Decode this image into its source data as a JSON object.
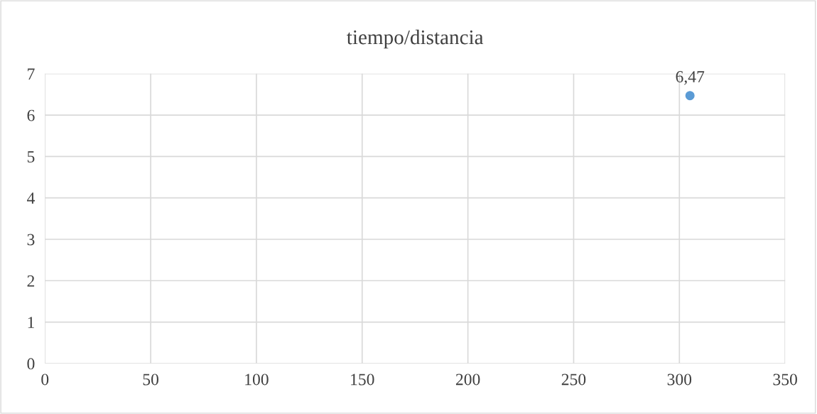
{
  "chart_data": {
    "type": "scatter",
    "title": "tiempo/distancia",
    "x": [
      305
    ],
    "series": [
      {
        "color": "#5b9bd5",
        "values": [
          6.47
        ],
        "value_labels": [
          "6,47"
        ]
      }
    ],
    "xlim": [
      0,
      350
    ],
    "xticks": [
      0,
      50,
      100,
      150,
      200,
      250,
      300,
      350
    ],
    "ylim": [
      0,
      7
    ],
    "yticks": [
      0,
      1,
      2,
      3,
      4,
      5,
      6,
      7
    ],
    "grid": true,
    "marker": "circle"
  }
}
